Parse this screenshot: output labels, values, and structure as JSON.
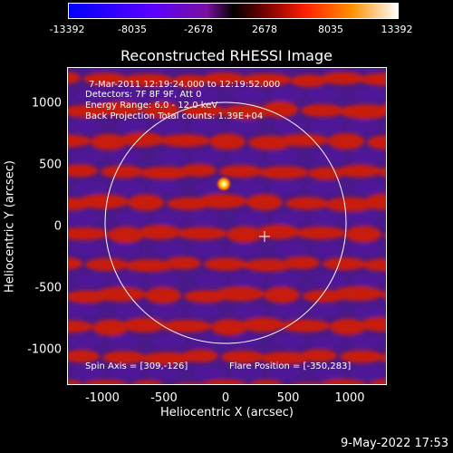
{
  "colorbar": {
    "ticks": [
      "-13392",
      "-8035",
      "-2678",
      "2678",
      "8035",
      "13392"
    ]
  },
  "title": "Reconstructed RHESSI Image",
  "info": {
    "time": "7-Mar-2011 12:19:24.000 to 12:19:52.000",
    "detectors": "Detectors: 7F 8F 9F, Att 0",
    "energy": "Energy Range: 6.0 - 12.0 keV",
    "method": "Back Projection    Total counts: 1.39E+04",
    "spin_axis": "Spin Axis = [309,-126]",
    "flare_position": "Flare Position = [-350,283]"
  },
  "axes": {
    "xlabel": "Heliocentric X (arcsec)",
    "ylabel": "Heliocentric Y (arcsec)",
    "xticks": [
      "-1000",
      "-500",
      "0",
      "500",
      "1000"
    ],
    "yticks": [
      "1000",
      "500",
      "0",
      "-500",
      "-1000"
    ]
  },
  "footer": "9-May-2022 17:53",
  "colors": {
    "stripe_red": "#c81e0a",
    "stripe_purple": "#50189a",
    "flare": "#ffe040",
    "limb": "#ffffff"
  }
}
